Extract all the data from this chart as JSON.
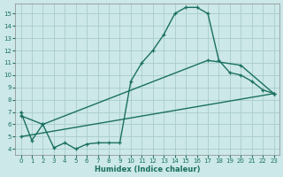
{
  "xlabel": "Humidex (Indice chaleur)",
  "bg_color": "#cce8e8",
  "grid_color": "#aacccc",
  "line_color": "#1a7060",
  "xlim": [
    -0.5,
    23.5
  ],
  "ylim": [
    3.5,
    15.8
  ],
  "xticks": [
    0,
    1,
    2,
    3,
    4,
    5,
    6,
    7,
    8,
    9,
    10,
    11,
    12,
    13,
    14,
    15,
    16,
    17,
    18,
    19,
    20,
    21,
    22,
    23
  ],
  "yticks": [
    4,
    5,
    6,
    7,
    8,
    9,
    10,
    11,
    12,
    13,
    14,
    15
  ],
  "line1_x": [
    0,
    1,
    2,
    3,
    4,
    5,
    6,
    7,
    8,
    9,
    10,
    11,
    12,
    13,
    14,
    15,
    16,
    17,
    18,
    19,
    20,
    21,
    22,
    23
  ],
  "line1_y": [
    7.0,
    4.7,
    6.0,
    4.1,
    4.5,
    4.0,
    4.4,
    4.5,
    4.5,
    4.5,
    9.5,
    11.0,
    12.0,
    13.3,
    15.0,
    15.5,
    15.5,
    15.0,
    11.2,
    10.2,
    10.0,
    9.5,
    8.8,
    8.5
  ],
  "line2_x": [
    0,
    2,
    17,
    20,
    23
  ],
  "line2_y": [
    6.7,
    6.0,
    11.2,
    10.8,
    8.5
  ],
  "line3_x": [
    0,
    23
  ],
  "line3_y": [
    5.0,
    8.5
  ]
}
